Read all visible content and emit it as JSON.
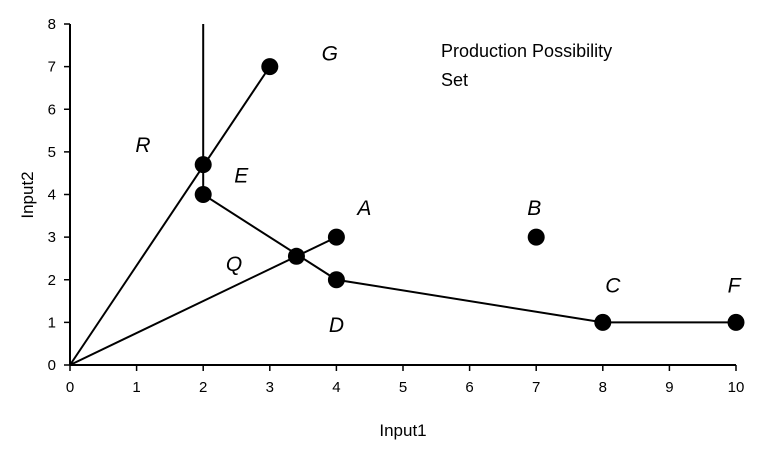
{
  "chart_data": {
    "type": "scatter",
    "title_lines": [
      "Production Possibility",
      "Set"
    ],
    "xlabel": "Input1",
    "ylabel": "Input2",
    "xlim": [
      0,
      10
    ],
    "ylim": [
      0,
      8
    ],
    "x_ticks": [
      0,
      1,
      2,
      3,
      4,
      5,
      6,
      7,
      8,
      9,
      10
    ],
    "y_ticks": [
      0,
      1,
      2,
      3,
      4,
      5,
      6,
      7,
      8
    ],
    "grid": false,
    "points": [
      {
        "label": "A",
        "x": 4,
        "y": 3
      },
      {
        "label": "B",
        "x": 7,
        "y": 3
      },
      {
        "label": "C",
        "x": 8,
        "y": 1
      },
      {
        "label": "D",
        "x": 4,
        "y": 2
      },
      {
        "label": "E",
        "x": 2,
        "y": 4
      },
      {
        "label": "F",
        "x": 10,
        "y": 1
      },
      {
        "label": "G",
        "x": 3,
        "y": 7
      }
    ],
    "unlabeled_points": [
      {
        "x": 2,
        "y": 4.7
      },
      {
        "x": 3.4,
        "y": 2.55
      }
    ],
    "region_labels": [
      "R",
      "Q"
    ],
    "lines": [
      {
        "name": "efficient-frontier",
        "x": [
          2,
          2,
          4,
          8,
          10
        ],
        "y": [
          8,
          4,
          2,
          1,
          1
        ]
      },
      {
        "name": "ray-to-G",
        "x": [
          0,
          3
        ],
        "y": [
          0,
          7
        ]
      },
      {
        "name": "ray-to-A",
        "x": [
          0,
          4
        ],
        "y": [
          0,
          3
        ]
      }
    ]
  }
}
